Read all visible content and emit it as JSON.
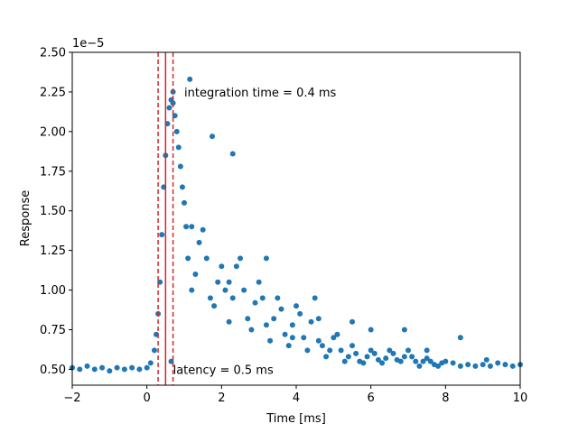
{
  "chart_data": {
    "type": "scatter",
    "title": "",
    "xlabel": "Time [ms]",
    "ylabel": "Response",
    "xlim": [
      -2,
      10
    ],
    "ylim": [
      0.4,
      2.5
    ],
    "y_offset_text": "1e−5",
    "x_ticks": [
      -2,
      0,
      2,
      4,
      6,
      8,
      10
    ],
    "x_tick_labels": [
      "−2",
      "0",
      "2",
      "4",
      "6",
      "8",
      "10"
    ],
    "y_ticks": [
      0.5,
      0.75,
      1.0,
      1.25,
      1.5,
      1.75,
      2.0,
      2.25,
      2.5
    ],
    "y_tick_labels": [
      "0.50",
      "0.75",
      "1.00",
      "1.25",
      "1.50",
      "1.75",
      "2.00",
      "2.25",
      "2.50"
    ],
    "grid": false,
    "series": [
      {
        "color": "#1f77b4",
        "x": [
          -2.0,
          -1.8,
          -1.6,
          -1.4,
          -1.2,
          -1.0,
          -0.8,
          -0.6,
          -0.4,
          -0.2,
          0.0,
          0.1,
          0.2,
          0.25,
          0.3,
          0.35,
          0.4,
          0.45,
          0.5,
          0.55,
          0.6,
          0.65,
          0.7,
          0.75,
          0.8,
          0.85,
          0.9,
          0.95,
          1.0,
          1.05,
          1.1,
          1.2,
          1.3,
          1.4,
          1.5,
          1.6,
          1.7,
          1.8,
          1.9,
          2.0,
          2.1,
          2.2,
          2.3,
          2.4,
          2.5,
          2.6,
          2.7,
          2.8,
          2.9,
          3.0,
          3.1,
          3.2,
          3.3,
          3.4,
          3.5,
          3.6,
          3.7,
          3.8,
          3.9,
          4.0,
          4.1,
          4.2,
          4.3,
          4.4,
          4.5,
          4.6,
          4.7,
          4.8,
          4.9,
          5.0,
          5.1,
          5.2,
          5.3,
          5.4,
          5.5,
          5.6,
          5.7,
          5.8,
          5.9,
          6.0,
          6.1,
          6.2,
          6.3,
          6.4,
          6.5,
          6.6,
          6.7,
          6.8,
          6.9,
          7.0,
          7.1,
          7.2,
          7.3,
          7.4,
          7.5,
          7.6,
          7.7,
          7.8,
          7.9,
          8.0,
          8.2,
          8.4,
          8.6,
          8.8,
          9.0,
          9.2,
          9.4,
          9.6,
          9.8,
          10.0,
          1.15,
          1.75,
          2.3,
          2.2,
          3.2,
          3.9,
          4.6,
          5.5,
          6.0,
          6.9,
          7.5,
          8.4,
          9.1,
          0.7,
          1.2,
          0.65
        ],
        "y": [
          0.51,
          0.5,
          0.52,
          0.5,
          0.51,
          0.49,
          0.51,
          0.5,
          0.51,
          0.5,
          0.51,
          0.54,
          0.62,
          0.72,
          0.85,
          1.05,
          1.35,
          1.65,
          1.85,
          2.05,
          2.15,
          2.2,
          2.18,
          2.1,
          2.0,
          1.9,
          1.78,
          1.65,
          1.55,
          1.4,
          1.2,
          1.0,
          1.1,
          1.3,
          1.38,
          1.2,
          0.95,
          0.9,
          1.05,
          1.15,
          1.0,
          0.8,
          0.95,
          1.15,
          1.2,
          1.0,
          0.82,
          0.75,
          0.92,
          1.05,
          0.95,
          0.78,
          0.68,
          0.82,
          0.95,
          0.88,
          0.72,
          0.65,
          0.78,
          0.9,
          0.85,
          0.7,
          0.62,
          0.8,
          0.95,
          0.82,
          0.65,
          0.58,
          0.62,
          0.7,
          0.72,
          0.62,
          0.55,
          0.58,
          0.65,
          0.6,
          0.55,
          0.54,
          0.58,
          0.62,
          0.6,
          0.56,
          0.54,
          0.57,
          0.62,
          0.6,
          0.56,
          0.55,
          0.58,
          0.62,
          0.58,
          0.55,
          0.52,
          0.55,
          0.57,
          0.55,
          0.53,
          0.52,
          0.54,
          0.55,
          0.54,
          0.52,
          0.53,
          0.52,
          0.53,
          0.52,
          0.54,
          0.53,
          0.52,
          0.53,
          2.33,
          1.97,
          1.86,
          1.05,
          1.2,
          0.7,
          0.68,
          0.8,
          0.75,
          0.75,
          0.62,
          0.7,
          0.56,
          2.25,
          1.4,
          0.55
        ]
      }
    ],
    "vlines": [
      {
        "x": 0.3,
        "style": "dashed",
        "color": "#d62728"
      },
      {
        "x": 0.5,
        "style": "solid",
        "color": "#d62728"
      },
      {
        "x": 0.7,
        "style": "dashed",
        "color": "#d62728"
      }
    ],
    "annotations": [
      {
        "text": "integration time = 0.4 ms",
        "x": 1.0,
        "y": 2.25
      },
      {
        "text": "latency = 0.5 ms",
        "x": 0.7,
        "y": 0.5
      }
    ]
  }
}
